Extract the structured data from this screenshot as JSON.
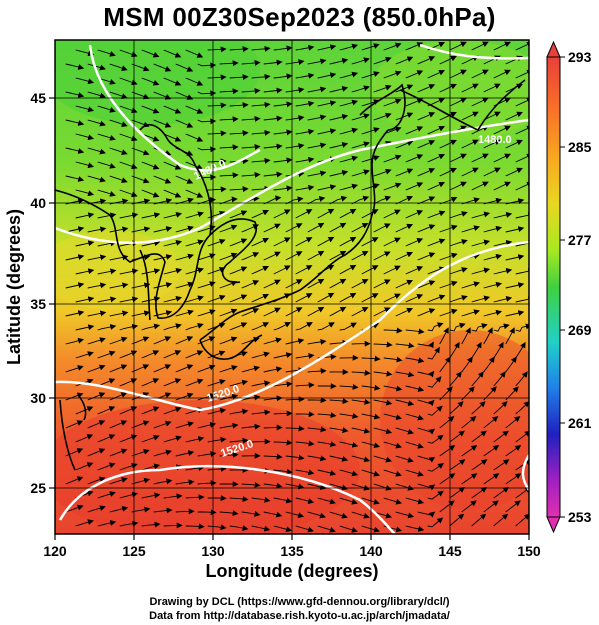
{
  "title": "MSM 00Z30Sep2023 (850.0hPa)",
  "axes": {
    "xlabel": "Longitude (degrees)",
    "ylabel": "Latitude  (degrees)",
    "xlim": [
      120,
      150
    ],
    "ylim": [
      22.5,
      48
    ],
    "xticks": [
      "120",
      "125",
      "130",
      "135",
      "140",
      "145",
      "150"
    ],
    "yticks": [
      "25",
      "30",
      "35",
      "40",
      "45"
    ]
  },
  "colorbar": {
    "min": 253,
    "max": 293,
    "labels": [
      "293",
      "285",
      "277",
      "269",
      "261",
      "253"
    ],
    "colors": [
      "#e8403a",
      "#f86a2a",
      "#f8a820",
      "#e8d820",
      "#a8e820",
      "#40d040",
      "#20d0c8",
      "#2080e8",
      "#2020c0",
      "#a020c0",
      "#e030b0"
    ]
  },
  "contours": [
    {
      "label": "1480.0"
    },
    {
      "label": "1480.0"
    },
    {
      "label": "1520.0"
    },
    {
      "label": "1520.0"
    }
  ],
  "credits": {
    "line1": "Drawing by DCL (https://www.gfd-dennou.org/library/dcl/)",
    "line2": "Data from http://database.rish.kyoto-u.ac.jp/arch/jmadata/"
  }
}
